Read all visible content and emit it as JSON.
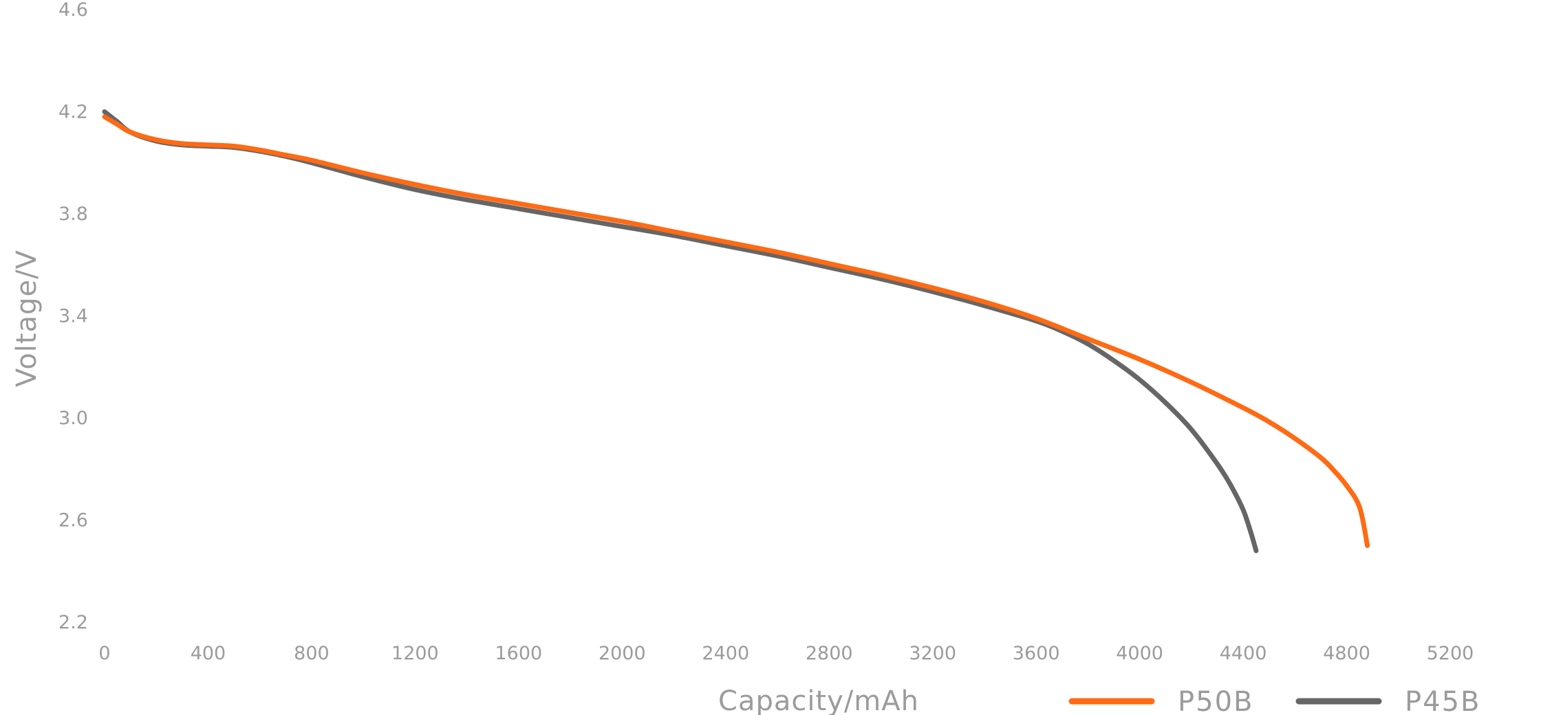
{
  "chart_data": {
    "type": "line",
    "title": "",
    "xlabel": "Capacity/mAh",
    "ylabel": "Voltage/V",
    "xlim": [
      0,
      5200
    ],
    "ylim": [
      2.2,
      4.6
    ],
    "x_ticks": [
      0,
      400,
      800,
      1200,
      1600,
      2000,
      2400,
      2800,
      3200,
      3600,
      4000,
      4400,
      4800,
      5200
    ],
    "y_ticks": [
      2.2,
      2.6,
      3.0,
      3.4,
      3.8,
      4.2,
      4.6
    ],
    "x_tick_labels": [
      "0",
      "400",
      "800",
      "1200",
      "1600",
      "2000",
      "2400",
      "2800",
      "3200",
      "3600",
      "4000",
      "4400",
      "4800",
      "5200"
    ],
    "y_tick_labels": [
      "2.2",
      "2.6",
      "3.0",
      "3.4",
      "3.8",
      "4.2",
      "4.6"
    ],
    "grid": false,
    "legend_position": "bottom-right",
    "series": [
      {
        "name": "P45B",
        "color": "#666666",
        "x": [
          0,
          50,
          100,
          200,
          300,
          400,
          500,
          600,
          700,
          800,
          1000,
          1200,
          1400,
          1600,
          1800,
          2000,
          2200,
          2400,
          2600,
          2800,
          3000,
          3200,
          3400,
          3600,
          3700,
          3800,
          3900,
          4000,
          4100,
          4200,
          4300,
          4350,
          4400,
          4430,
          4450
        ],
        "y": [
          4.2,
          4.16,
          4.12,
          4.085,
          4.07,
          4.065,
          4.06,
          4.045,
          4.025,
          4.0,
          3.945,
          3.895,
          3.855,
          3.82,
          3.785,
          3.75,
          3.715,
          3.675,
          3.635,
          3.59,
          3.545,
          3.495,
          3.44,
          3.38,
          3.34,
          3.29,
          3.225,
          3.15,
          3.06,
          2.955,
          2.82,
          2.74,
          2.64,
          2.55,
          2.48
        ]
      },
      {
        "name": "P50B",
        "color": "#ff6a13",
        "x": [
          0,
          50,
          100,
          200,
          300,
          400,
          500,
          600,
          700,
          800,
          1000,
          1200,
          1400,
          1600,
          1800,
          2000,
          2200,
          2400,
          2600,
          2800,
          3000,
          3200,
          3400,
          3600,
          3800,
          4000,
          4200,
          4400,
          4500,
          4600,
          4700,
          4750,
          4800,
          4850,
          4880
        ],
        "y": [
          4.18,
          4.15,
          4.12,
          4.09,
          4.075,
          4.07,
          4.065,
          4.05,
          4.03,
          4.01,
          3.96,
          3.915,
          3.875,
          3.84,
          3.805,
          3.77,
          3.73,
          3.69,
          3.65,
          3.605,
          3.56,
          3.51,
          3.455,
          3.39,
          3.31,
          3.23,
          3.14,
          3.04,
          2.985,
          2.92,
          2.845,
          2.795,
          2.735,
          2.65,
          2.5
        ]
      }
    ]
  }
}
